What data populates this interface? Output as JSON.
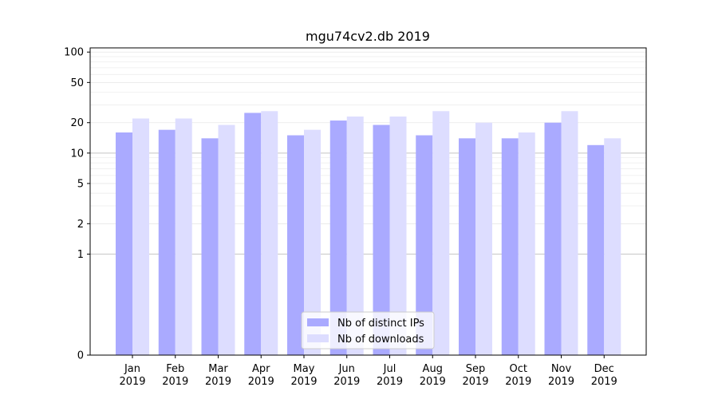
{
  "chart_data": {
    "type": "bar",
    "title": "mgu74cv2.db 2019",
    "xlabel": "",
    "ylabel": "",
    "yscale": "symlog",
    "ylim": [
      0,
      110
    ],
    "yticks": [
      0,
      1,
      2,
      5,
      10,
      20,
      50,
      100
    ],
    "categories": [
      [
        "Jan",
        "2019"
      ],
      [
        "Feb",
        "2019"
      ],
      [
        "Mar",
        "2019"
      ],
      [
        "Apr",
        "2019"
      ],
      [
        "May",
        "2019"
      ],
      [
        "Jun",
        "2019"
      ],
      [
        "Jul",
        "2019"
      ],
      [
        "Aug",
        "2019"
      ],
      [
        "Sep",
        "2019"
      ],
      [
        "Oct",
        "2019"
      ],
      [
        "Nov",
        "2019"
      ],
      [
        "Dec",
        "2019"
      ]
    ],
    "series": [
      {
        "name": "Nb of distinct IPs",
        "color": "#aaaaff",
        "values": [
          16,
          17,
          14,
          25,
          15,
          21,
          19,
          15,
          14,
          14,
          20,
          12
        ]
      },
      {
        "name": "Nb of downloads",
        "color": "#ddddff",
        "values": [
          22,
          22,
          19,
          26,
          17,
          23,
          23,
          26,
          20,
          16,
          26,
          14
        ]
      }
    ],
    "legend": "bottom-center",
    "grid": true
  }
}
